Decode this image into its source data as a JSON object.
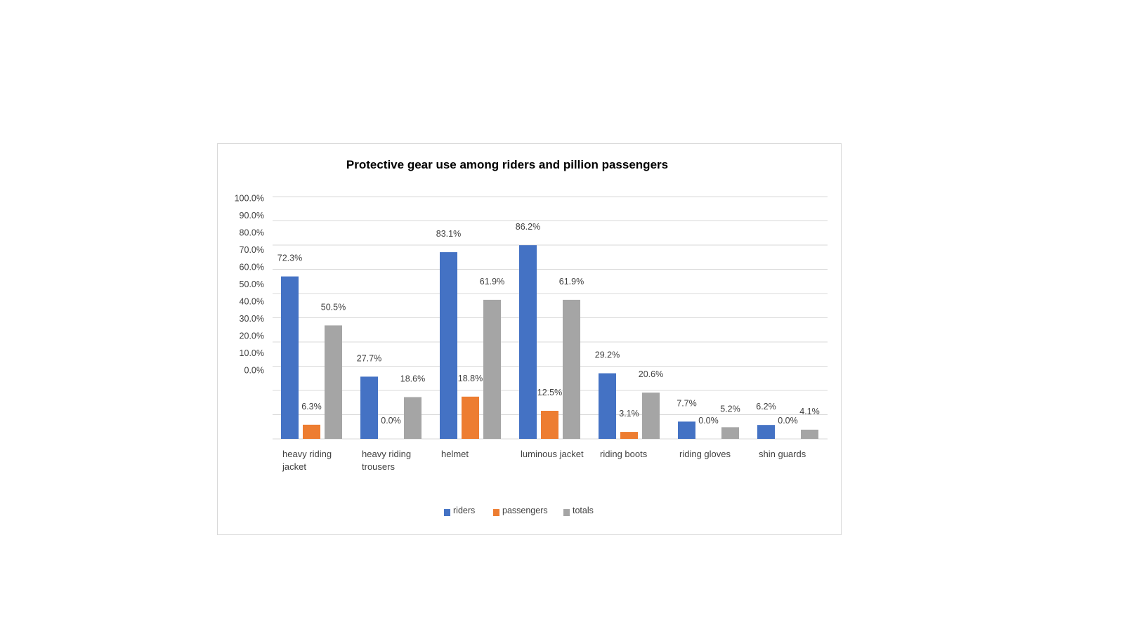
{
  "chart_data": {
    "type": "bar",
    "title": "Protective gear use among riders and pillion passengers",
    "xlabel": "",
    "ylabel": "",
    "y_tick_labels": [
      "100.0%",
      "90.0%",
      "80.0%",
      "70.0%",
      "60.0%",
      "50.0%",
      "40.0%",
      "30.0%",
      "20.0%",
      "10.0%",
      "0.0%"
    ],
    "ylim": [
      0,
      100
    ],
    "categories": [
      [
        "heavy riding",
        "jacket"
      ],
      [
        "heavy riding",
        "trousers"
      ],
      [
        "helmet"
      ],
      [
        "luminous jacket"
      ],
      [
        "riding boots"
      ],
      [
        "riding gloves"
      ],
      [
        "shin guards"
      ]
    ],
    "series": [
      {
        "name": "riders",
        "color": "#4472C4",
        "values": [
          72.3,
          27.7,
          83.1,
          86.2,
          29.2,
          7.7,
          6.2
        ],
        "labels": [
          "72.3%",
          "27.7%",
          "83.1%",
          "86.2%",
          "29.2%",
          "7.7%",
          "6.2%"
        ]
      },
      {
        "name": "passengers",
        "color": "#ED7D31",
        "values": [
          6.3,
          0.0,
          18.8,
          12.5,
          3.1,
          0.0,
          0.0
        ],
        "labels": [
          "6.3%",
          "0.0%",
          "18.8%",
          "12.5%",
          "3.1%",
          "0.0%",
          "0.0%"
        ]
      },
      {
        "name": "totals",
        "color": "#A5A5A5",
        "values": [
          50.5,
          18.6,
          61.9,
          61.9,
          20.6,
          5.2,
          4.1
        ],
        "labels": [
          "50.5%",
          "18.6%",
          "61.9%",
          "61.9%",
          "20.6%",
          "5.2%",
          "4.1%"
        ]
      }
    ],
    "grid": true,
    "legend_position": "bottom"
  }
}
